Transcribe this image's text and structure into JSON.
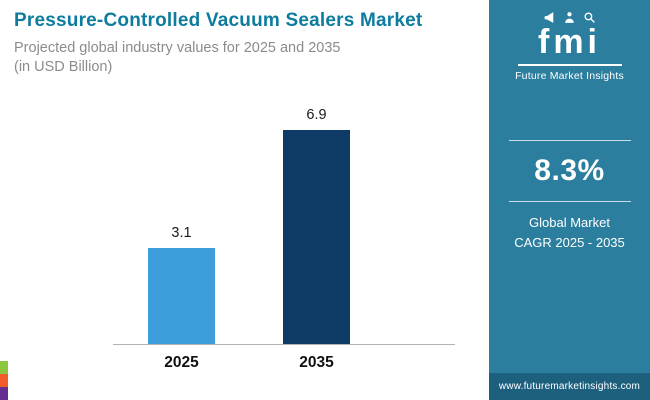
{
  "header": {
    "title": "Pressure-Controlled Vacuum Sealers Market",
    "title_color": "#0d7c9e",
    "subtitle": "Projected global industry values for 2025 and 2035",
    "unit_note": "(in USD Billion)"
  },
  "chart_data": {
    "type": "bar",
    "categories": [
      "2025",
      "2035"
    ],
    "values": [
      3.1,
      6.9
    ],
    "value_labels": [
      "3.1",
      "6.9"
    ],
    "title": "Pressure-Controlled Vacuum Sealers Market — projected global industry values (USD Billion)",
    "xlabel": "",
    "ylabel": "USD Billion",
    "ylim": [
      0,
      7.5
    ],
    "grid": false,
    "legend": false,
    "bar_colors": [
      "#3e9edb",
      "#0e3a66"
    ]
  },
  "sidebar": {
    "bg_color": "#2c7e9e",
    "footer_bg_color": "#1d607e",
    "logo": {
      "text": "fmi",
      "tagline": "Future Market Insights"
    },
    "cagr": {
      "value": "8.3%",
      "label_line1": "Global Market",
      "label_line2": "CAGR 2025 - 2035"
    },
    "footer_url": "www.futuremarketinsights.com"
  },
  "accent_stripes": [
    "#8dc63f",
    "#f15a29",
    "#662d91"
  ]
}
